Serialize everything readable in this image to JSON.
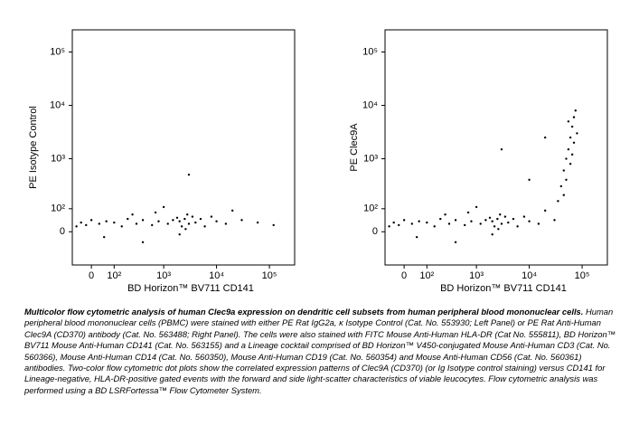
{
  "chart_data": [
    {
      "type": "scatter",
      "y_label": "PE  Isotype Control",
      "x_label": "BD Horizon™ BV711  CD141",
      "scale": "biexponential",
      "color": "#000000",
      "xlim": [
        -80,
        300000
      ],
      "ylim": [
        -170,
        260000
      ],
      "xticks": [
        0,
        {
          "value": 100,
          "label": "10²"
        },
        {
          "value": 1000,
          "label": "10³"
        },
        {
          "value": 10000,
          "label": "10⁴"
        },
        {
          "value": 100000,
          "label": "10⁵"
        }
      ],
      "yticks": [
        0,
        {
          "value": 100,
          "label": "10²"
        },
        {
          "value": 1000,
          "label": "10³"
        },
        {
          "value": 10000,
          "label": "10⁴"
        },
        {
          "value": 100000,
          "label": "10⁵"
        }
      ],
      "x": [
        2000,
        2500,
        3000,
        1500,
        3500,
        2200,
        2800,
        4000,
        1800,
        2600,
        1200,
        5000,
        800,
        600,
        400,
        300,
        200,
        150,
        100,
        60,
        30,
        0,
        -20,
        -40,
        -60,
        10000,
        15000,
        30000,
        60000,
        120000,
        8000,
        6000,
        700,
        250,
        50,
        3000,
        1000,
        20000,
        400,
        2000
      ],
      "values": [
        40,
        50,
        30,
        45,
        60,
        20,
        70,
        35,
        55,
        10,
        30,
        50,
        40,
        25,
        45,
        30,
        50,
        20,
        35,
        40,
        30,
        45,
        25,
        35,
        20,
        40,
        30,
        45,
        35,
        25,
        60,
        20,
        80,
        70,
        -20,
        500,
        110,
        90,
        -40,
        -10
      ]
    },
    {
      "type": "scatter",
      "y_label": "PE  Clec9A",
      "x_label": "BD Horizon™ BV711  CD141",
      "scale": "biexponential",
      "color": "#000000",
      "xlim": [
        -80,
        300000
      ],
      "ylim": [
        -170,
        260000
      ],
      "xticks": [
        0,
        {
          "value": 100,
          "label": "10²"
        },
        {
          "value": 1000,
          "label": "10³"
        },
        {
          "value": 10000,
          "label": "10⁴"
        },
        {
          "value": 100000,
          "label": "10⁵"
        }
      ],
      "yticks": [
        0,
        {
          "value": 100,
          "label": "10²"
        },
        {
          "value": 1000,
          "label": "10³"
        },
        {
          "value": 10000,
          "label": "10⁴"
        },
        {
          "value": 100000,
          "label": "10⁵"
        }
      ],
      "x": [
        2000,
        2500,
        3000,
        1500,
        3500,
        2200,
        2800,
        4000,
        1800,
        2600,
        1200,
        5000,
        800,
        600,
        400,
        300,
        200,
        150,
        100,
        60,
        30,
        0,
        -20,
        -40,
        -60,
        10000,
        15000,
        30000,
        8000,
        6000,
        700,
        250,
        50,
        3000,
        1000,
        20000,
        400,
        2000,
        40000,
        45000,
        50000,
        55000,
        60000,
        65000,
        70000,
        75000,
        60000,
        50000,
        70000,
        80000,
        65000,
        55000,
        45000,
        35000,
        20000,
        10000
      ],
      "values": [
        40,
        50,
        30,
        45,
        60,
        20,
        70,
        35,
        55,
        10,
        30,
        50,
        40,
        25,
        45,
        30,
        50,
        20,
        35,
        40,
        30,
        45,
        25,
        35,
        20,
        40,
        30,
        45,
        60,
        20,
        80,
        70,
        -20,
        1500,
        110,
        90,
        -40,
        -10,
        300,
        600,
        1000,
        1500,
        2500,
        4000,
        6000,
        8000,
        800,
        400,
        2000,
        3000,
        1200,
        5000,
        200,
        150,
        2500,
        400
      ]
    }
  ],
  "caption": {
    "title": "Multicolor flow cytometric analysis of human Clec9a expression on dendritic cell subsets from human peripheral blood mononuclear cells.",
    "text": "Human peripheral blood mononuclear cells (PBMC) were stained with either PE Rat IgG2a, κ Isotype Control (Cat. No. 553930; Left Panel) or PE Rat Anti-Human Clec9A (CD370) antibody (Cat. No. 563488; Right Panel). The cells were also stained with FITC Mouse Anti-Human HLA-DR (Cat No. 555811), BD Horizon™ BV711 Mouse Anti-Human CD141 (Cat. No. 563155) and a Lineage cocktail comprised of BD Horizon™ V450-conjugated Mouse Anti-Human CD3 (Cat. No. 560366), Mouse Anti-Human CD14 (Cat. No. 560350), Mouse Anti-Human CD19 (Cat. No. 560354) and Mouse Anti-Human CD56 (Cat. No. 560361) antibodies. Two-color flow cytometric dot plots show the correlated expression patterns of Clec9A (CD370) (or Ig Isotype control staining) versus CD141 for Lineage-negative, HLA-DR-positive gated events with the forward and side light-scatter characteristics of viable leucocytes. Flow cytometric analysis was performed using a BD LSRFortessa™ Flow Cytometer System."
  }
}
